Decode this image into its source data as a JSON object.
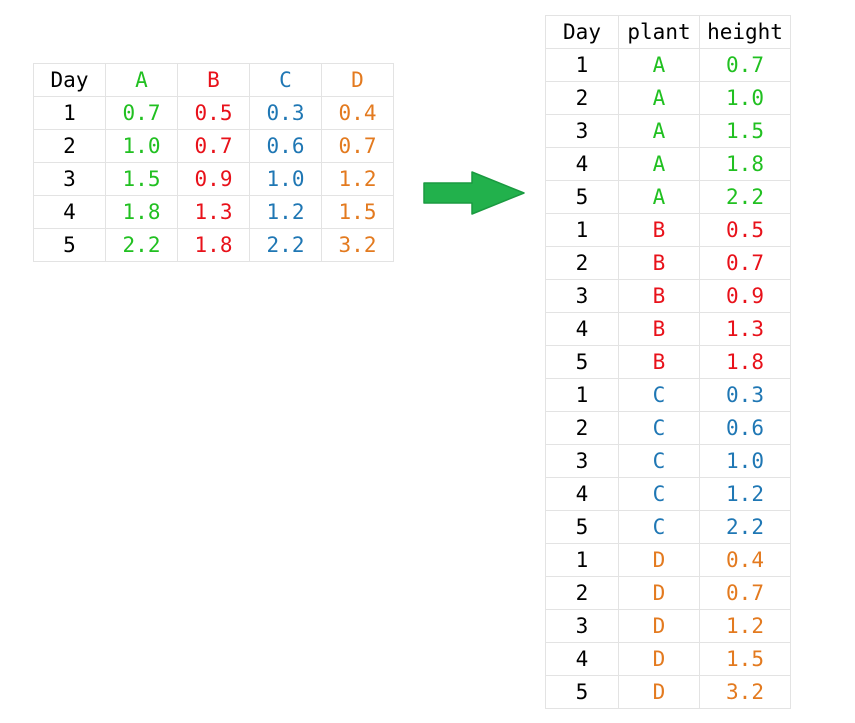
{
  "colors": {
    "A": "#21c021",
    "B": "#e8111a",
    "C": "#1f77b4",
    "D": "#e37a1f",
    "arrow": "#22b14c"
  },
  "wide_table": {
    "headers": [
      "Day",
      "A",
      "B",
      "C",
      "D"
    ],
    "rows": [
      [
        "1",
        "0.7",
        "0.5",
        "0.3",
        "0.4"
      ],
      [
        "2",
        "1.0",
        "0.7",
        "0.6",
        "0.7"
      ],
      [
        "3",
        "1.5",
        "0.9",
        "1.0",
        "1.2"
      ],
      [
        "4",
        "1.8",
        "1.3",
        "1.2",
        "1.5"
      ],
      [
        "5",
        "2.2",
        "1.8",
        "2.2",
        "3.2"
      ]
    ]
  },
  "arrow_icon": "right-arrow-icon",
  "long_table": {
    "headers": [
      "Day",
      "plant",
      "height"
    ],
    "rows": [
      [
        "1",
        "A",
        "0.7"
      ],
      [
        "2",
        "A",
        "1.0"
      ],
      [
        "3",
        "A",
        "1.5"
      ],
      [
        "4",
        "A",
        "1.8"
      ],
      [
        "5",
        "A",
        "2.2"
      ],
      [
        "1",
        "B",
        "0.5"
      ],
      [
        "2",
        "B",
        "0.7"
      ],
      [
        "3",
        "B",
        "0.9"
      ],
      [
        "4",
        "B",
        "1.3"
      ],
      [
        "5",
        "B",
        "1.8"
      ],
      [
        "1",
        "C",
        "0.3"
      ],
      [
        "2",
        "C",
        "0.6"
      ],
      [
        "3",
        "C",
        "1.0"
      ],
      [
        "4",
        "C",
        "1.2"
      ],
      [
        "5",
        "C",
        "2.2"
      ],
      [
        "1",
        "D",
        "0.4"
      ],
      [
        "2",
        "D",
        "0.7"
      ],
      [
        "3",
        "D",
        "1.2"
      ],
      [
        "4",
        "D",
        "1.5"
      ],
      [
        "5",
        "D",
        "3.2"
      ]
    ]
  }
}
